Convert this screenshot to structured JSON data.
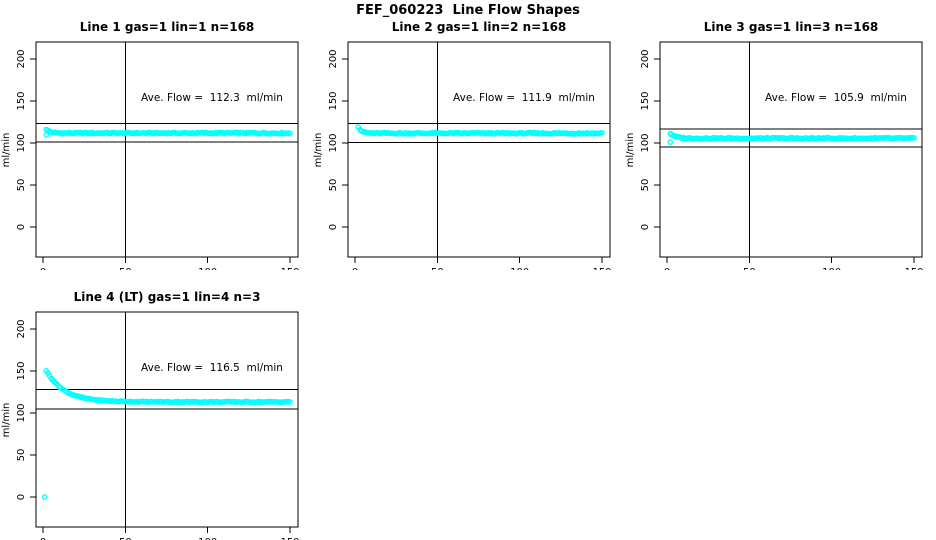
{
  "page_title": "FEF_060223  Line Flow Shapes",
  "colors": {
    "marker": "#00ffff",
    "axis": "#000000",
    "text": "#000000",
    "background": "#ffffff"
  },
  "chart_data": [
    {
      "type": "scatter",
      "title": "Line 1 gas=1 lin=1 n=168",
      "annotation": "Ave. Flow =  112.3  ml/min",
      "ave_flow_ml_min": 112.3,
      "n": 168,
      "gas": 1,
      "lin": 1,
      "xlabel": "",
      "ylabel": "ml/min",
      "x_ticks": [
        0,
        50,
        100,
        150
      ],
      "y_ticks": [
        0,
        50,
        100,
        150,
        200
      ],
      "xlim": [
        0,
        155
      ],
      "ylim": [
        -35,
        230
      ],
      "vline_x": 50,
      "hlines": [
        101.1,
        123.5
      ],
      "series": {
        "name": "flow",
        "x_start": 2,
        "x_end": 150,
        "n_points": 149,
        "y_start": 116.5,
        "y_settle": 111.8,
        "decay_tau": 2.2,
        "noise_amp": 1.6,
        "seed": 1
      },
      "outliers": [
        [
          2,
          109.5
        ]
      ]
    },
    {
      "type": "scatter",
      "title": "Line 2 gas=1 lin=2 n=168",
      "annotation": "Ave. Flow =  111.9  ml/min",
      "ave_flow_ml_min": 111.9,
      "n": 168,
      "gas": 1,
      "lin": 2,
      "xlabel": "",
      "ylabel": "ml/min",
      "x_ticks": [
        0,
        50,
        100,
        150
      ],
      "y_ticks": [
        0,
        50,
        100,
        150,
        200
      ],
      "xlim": [
        0,
        155
      ],
      "ylim": [
        -35,
        230
      ],
      "vline_x": 50,
      "hlines": [
        100.7,
        123.1
      ],
      "series": {
        "name": "flow",
        "x_start": 2,
        "x_end": 150,
        "n_points": 149,
        "y_start": 119.5,
        "y_settle": 111.6,
        "decay_tau": 2.0,
        "noise_amp": 1.6,
        "seed": 2
      },
      "outliers": []
    },
    {
      "type": "scatter",
      "title": "Line 3 gas=1 lin=3 n=168",
      "annotation": "Ave. Flow =  105.9  ml/min",
      "ave_flow_ml_min": 105.9,
      "n": 168,
      "gas": 1,
      "lin": 3,
      "xlabel": "",
      "ylabel": "ml/min",
      "x_ticks": [
        0,
        50,
        100,
        150
      ],
      "y_ticks": [
        0,
        50,
        100,
        150,
        200
      ],
      "xlim": [
        0,
        155
      ],
      "ylim": [
        -35,
        230
      ],
      "vline_x": 50,
      "hlines": [
        95.3,
        116.5
      ],
      "series": {
        "name": "flow",
        "x_start": 2,
        "x_end": 150,
        "n_points": 149,
        "y_start": 111.5,
        "y_settle": 105.6,
        "decay_tau": 3.0,
        "noise_amp": 1.6,
        "seed": 3
      },
      "outliers": [
        [
          2,
          101
        ]
      ]
    },
    {
      "type": "scatter",
      "title": "Line 4 (LT) gas=1 lin=4 n=3",
      "annotation": "Ave. Flow =  116.5  ml/min",
      "ave_flow_ml_min": 116.5,
      "n": 3,
      "gas": 1,
      "lin": 4,
      "xlabel": "",
      "ylabel": "ml/min",
      "x_ticks": [
        0,
        50,
        100,
        150
      ],
      "y_ticks": [
        0,
        50,
        100,
        150,
        200
      ],
      "xlim": [
        0,
        155
      ],
      "ylim": [
        -35,
        230
      ],
      "vline_x": 50,
      "hlines": [
        104.9,
        128.2
      ],
      "series": {
        "name": "flow",
        "x_start": 2,
        "x_end": 150,
        "n_points": 149,
        "y_start": 150.5,
        "y_settle": 113.2,
        "decay_tau": 11,
        "noise_amp": 1.2,
        "seed": 4
      },
      "outliers": [
        [
          1,
          0
        ]
      ]
    }
  ]
}
